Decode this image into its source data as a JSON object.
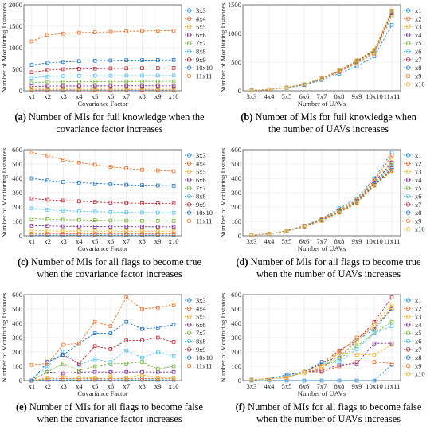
{
  "series_colors": [
    "#2a8fd6",
    "#ea6a2e",
    "#f2b32c",
    "#7a2e8c",
    "#74b33c",
    "#55c4ee",
    "#b32c3a",
    "#2272b8",
    "#e0742d",
    "#e8b43c"
  ],
  "panels": [
    {
      "tag": "(a)",
      "caption_line1": "Number of MIs for full knowledge when the",
      "caption_line2": "covariance factor increases"
    },
    {
      "tag": "(b)",
      "caption_line1": "Number of MIs for full knowledge when",
      "caption_line2": "the number of UAVs increases"
    },
    {
      "tag": "(c)",
      "caption_line1": "Number of MIs for all flags to become true",
      "caption_line2": "when the covariance factor increases"
    },
    {
      "tag": "(d)",
      "caption_line1": "Number of MIs for all flags to become true",
      "caption_line2": "when the number of UAVs increases"
    },
    {
      "tag": "(e)",
      "caption_line1": "Number of MIs for all flags to become false",
      "caption_line2": "when the covariance factor increases"
    },
    {
      "tag": "(f)",
      "caption_line1": "Number of MIs for all flags to become false",
      "caption_line2": "when the number of UAVs increases"
    }
  ],
  "chart_data": [
    {
      "type": "line",
      "xlabel": "Covariance Factor",
      "ylabel": "Number of Monitoring Instances",
      "categories": [
        "x1",
        "x2",
        "x3",
        "x4",
        "x5",
        "x6",
        "x7",
        "x8",
        "x9",
        "x10"
      ],
      "yticks": [
        0,
        500,
        1000,
        1500,
        2000
      ],
      "ylim": [
        0,
        2000
      ],
      "grid": true,
      "legend": "right",
      "series": [
        {
          "name": "3x3",
          "values": [
            5,
            6,
            6,
            6,
            6,
            6,
            6,
            6,
            6,
            6
          ]
        },
        {
          "name": "4x4",
          "values": [
            20,
            22,
            22,
            22,
            22,
            22,
            22,
            22,
            22,
            22
          ]
        },
        {
          "name": "5x5",
          "values": [
            50,
            55,
            56,
            56,
            56,
            56,
            56,
            56,
            56,
            56
          ]
        },
        {
          "name": "6x6",
          "values": [
            100,
            110,
            112,
            113,
            113,
            114,
            114,
            114,
            114,
            114
          ]
        },
        {
          "name": "7x7",
          "values": [
            190,
            205,
            210,
            212,
            214,
            216,
            217,
            218,
            219,
            220
          ]
        },
        {
          "name": "8x8",
          "values": [
            300,
            330,
            340,
            345,
            348,
            350,
            352,
            353,
            354,
            355
          ]
        },
        {
          "name": "9x9",
          "values": [
            430,
            480,
            500,
            510,
            515,
            520,
            523,
            525,
            527,
            530
          ]
        },
        {
          "name": "10x10",
          "values": [
            600,
            650,
            670,
            690,
            700,
            705,
            710,
            712,
            715,
            718
          ]
        },
        {
          "name": "11x11",
          "values": [
            1150,
            1300,
            1330,
            1350,
            1360,
            1370,
            1380,
            1390,
            1395,
            1400
          ]
        }
      ]
    },
    {
      "type": "line",
      "xlabel": "Number of UAVs",
      "ylabel": "Number of Monitoring Instances",
      "categories": [
        "3x3",
        "4x4",
        "5x5",
        "6x6",
        "7x7",
        "8x8",
        "9x9",
        "10x10",
        "11x11"
      ],
      "yticks": [
        0,
        500,
        1000,
        1500
      ],
      "ylim": [
        0,
        1500
      ],
      "grid": true,
      "legend": "right",
      "series": [
        {
          "name": "x1",
          "values": [
            5,
            20,
            50,
            100,
            190,
            300,
            430,
            600,
            1150
          ]
        },
        {
          "name": "x2",
          "values": [
            6,
            22,
            55,
            110,
            205,
            330,
            480,
            650,
            1300
          ]
        },
        {
          "name": "x3",
          "values": [
            6,
            22,
            56,
            112,
            210,
            340,
            500,
            670,
            1330
          ]
        },
        {
          "name": "x4",
          "values": [
            6,
            22,
            56,
            113,
            212,
            345,
            510,
            690,
            1350
          ]
        },
        {
          "name": "x5",
          "values": [
            6,
            22,
            56,
            113,
            214,
            348,
            515,
            700,
            1360
          ]
        },
        {
          "name": "x6",
          "values": [
            6,
            22,
            56,
            114,
            216,
            350,
            520,
            705,
            1370
          ]
        },
        {
          "name": "x7",
          "values": [
            6,
            22,
            56,
            114,
            217,
            352,
            523,
            710,
            1380
          ]
        },
        {
          "name": "x8",
          "values": [
            6,
            22,
            56,
            114,
            218,
            353,
            525,
            712,
            1390
          ]
        },
        {
          "name": "x9",
          "values": [
            6,
            22,
            56,
            114,
            219,
            354,
            527,
            715,
            1395
          ]
        },
        {
          "name": "x10",
          "values": [
            6,
            22,
            56,
            114,
            220,
            355,
            530,
            718,
            1400
          ]
        }
      ]
    },
    {
      "type": "line",
      "xlabel": "Covariance Factor",
      "ylabel": "Number of Monitoring Instances",
      "categories": [
        "x1",
        "x2",
        "x3",
        "x4",
        "x5",
        "x6",
        "x7",
        "x8",
        "x9",
        "x10"
      ],
      "yticks": [
        0,
        100,
        200,
        300,
        400,
        500,
        600
      ],
      "ylim": [
        0,
        600
      ],
      "grid": true,
      "legend": "right",
      "series": [
        {
          "name": "3x3",
          "values": [
            5,
            5,
            5,
            5,
            5,
            5,
            5,
            5,
            5,
            5
          ]
        },
        {
          "name": "4x4",
          "values": [
            15,
            15,
            14,
            14,
            14,
            14,
            14,
            14,
            14,
            14
          ]
        },
        {
          "name": "5x5",
          "values": [
            35,
            34,
            33,
            33,
            33,
            32,
            32,
            32,
            32,
            32
          ]
        },
        {
          "name": "6x6",
          "values": [
            70,
            68,
            66,
            65,
            64,
            63,
            63,
            62,
            62,
            62
          ]
        },
        {
          "name": "7x7",
          "values": [
            120,
            115,
            112,
            110,
            108,
            106,
            105,
            104,
            104,
            103
          ]
        },
        {
          "name": "8x8",
          "values": [
            190,
            180,
            175,
            170,
            168,
            165,
            163,
            162,
            161,
            160
          ]
        },
        {
          "name": "9x9",
          "values": [
            260,
            250,
            245,
            240,
            235,
            230,
            228,
            226,
            225,
            224
          ]
        },
        {
          "name": "10x10",
          "values": [
            400,
            385,
            375,
            370,
            365,
            360,
            355,
            352,
            350,
            348
          ]
        },
        {
          "name": "11x11",
          "values": [
            580,
            560,
            530,
            510,
            495,
            480,
            470,
            460,
            455,
            450
          ]
        }
      ]
    },
    {
      "type": "line",
      "xlabel": "Number of UAVs",
      "ylabel": "Number of Monitoring Instances",
      "categories": [
        "3x3",
        "4x4",
        "5x5",
        "6x6",
        "7x7",
        "8x8",
        "9x9",
        "10x10",
        "11x11"
      ],
      "yticks": [
        0,
        100,
        200,
        300,
        400,
        500,
        600
      ],
      "ylim": [
        0,
        600
      ],
      "grid": true,
      "legend": "right",
      "series": [
        {
          "name": "x1",
          "values": [
            5,
            15,
            35,
            70,
            120,
            190,
            260,
            400,
            580
          ]
        },
        {
          "name": "x2",
          "values": [
            5,
            15,
            34,
            68,
            115,
            180,
            250,
            385,
            560
          ]
        },
        {
          "name": "x3",
          "values": [
            5,
            14,
            33,
            66,
            112,
            175,
            245,
            375,
            530
          ]
        },
        {
          "name": "x4",
          "values": [
            5,
            14,
            33,
            65,
            110,
            170,
            240,
            370,
            510
          ]
        },
        {
          "name": "x5",
          "values": [
            5,
            14,
            33,
            64,
            108,
            168,
            235,
            365,
            495
          ]
        },
        {
          "name": "x6",
          "values": [
            5,
            14,
            32,
            63,
            106,
            165,
            230,
            360,
            480
          ]
        },
        {
          "name": "x7",
          "values": [
            5,
            14,
            32,
            63,
            105,
            163,
            228,
            355,
            470
          ]
        },
        {
          "name": "x8",
          "values": [
            5,
            14,
            32,
            62,
            104,
            162,
            226,
            352,
            460
          ]
        },
        {
          "name": "x9",
          "values": [
            5,
            14,
            32,
            62,
            104,
            161,
            225,
            350,
            455
          ]
        },
        {
          "name": "x10",
          "values": [
            5,
            14,
            32,
            62,
            103,
            160,
            224,
            348,
            450
          ]
        }
      ]
    },
    {
      "type": "line",
      "xlabel": "Covariance Factor",
      "ylabel": "Number of Monitoring Instances",
      "categories": [
        "x1",
        "x2",
        "x3",
        "x4",
        "x5",
        "x6",
        "x7",
        "x8",
        "x9",
        "x10"
      ],
      "yticks": [
        0,
        100,
        200,
        300,
        400,
        500,
        600
      ],
      "ylim": [
        0,
        600
      ],
      "grid": true,
      "legend": "right",
      "series": [
        {
          "name": "3x3",
          "values": [
            0,
            5,
            5,
            5,
            5,
            5,
            5,
            5,
            5,
            5
          ]
        },
        {
          "name": "4x4",
          "values": [
            0,
            15,
            14,
            14,
            14,
            14,
            14,
            14,
            14,
            14
          ]
        },
        {
          "name": "5x5",
          "values": [
            0,
            20,
            30,
            20,
            20,
            30,
            20,
            40,
            20,
            20
          ]
        },
        {
          "name": "6x6",
          "values": [
            0,
            60,
            50,
            60,
            60,
            60,
            60,
            60,
            60,
            60
          ]
        },
        {
          "name": "7x7",
          "values": [
            0,
            60,
            120,
            70,
            100,
            120,
            120,
            130,
            80,
            100
          ]
        },
        {
          "name": "8x8",
          "values": [
            0,
            100,
            200,
            110,
            150,
            130,
            210,
            160,
            200,
            170
          ]
        },
        {
          "name": "9x9",
          "values": [
            0,
            130,
            180,
            120,
            240,
            220,
            280,
            280,
            300,
            270
          ]
        },
        {
          "name": "10x10",
          "values": [
            0,
            130,
            180,
            260,
            330,
            330,
            410,
            360,
            370,
            390
          ]
        },
        {
          "name": "11x11",
          "values": [
            110,
            120,
            250,
            260,
            410,
            380,
            580,
            500,
            510,
            530
          ]
        }
      ]
    },
    {
      "type": "line",
      "xlabel": "Number of UAVs",
      "ylabel": "Number of Monitoring Instances",
      "categories": [
        "3x3",
        "4x4",
        "5x5",
        "6x6",
        "7x7",
        "8x8",
        "9x9",
        "10x10",
        "11x11"
      ],
      "yticks": [
        0,
        100,
        200,
        300,
        400,
        500,
        600
      ],
      "ylim": [
        0,
        600
      ],
      "grid": true,
      "legend": "right",
      "series": [
        {
          "name": "x1",
          "values": [
            0,
            0,
            0,
            0,
            0,
            0,
            0,
            0,
            110
          ]
        },
        {
          "name": "x2",
          "values": [
            5,
            15,
            20,
            60,
            60,
            100,
            130,
            130,
            120
          ]
        },
        {
          "name": "x3",
          "values": [
            5,
            14,
            30,
            50,
            120,
            200,
            180,
            180,
            250
          ]
        },
        {
          "name": "x4",
          "values": [
            5,
            14,
            20,
            60,
            70,
            110,
            120,
            260,
            260
          ]
        },
        {
          "name": "x5",
          "values": [
            5,
            14,
            20,
            60,
            100,
            150,
            240,
            330,
            410
          ]
        },
        {
          "name": "x6",
          "values": [
            5,
            14,
            30,
            60,
            120,
            130,
            220,
            330,
            380
          ]
        },
        {
          "name": "x7",
          "values": [
            5,
            14,
            20,
            60,
            120,
            210,
            280,
            410,
            580
          ]
        },
        {
          "name": "x8",
          "values": [
            5,
            14,
            40,
            60,
            130,
            160,
            280,
            360,
            500
          ]
        },
        {
          "name": "x9",
          "values": [
            5,
            14,
            20,
            60,
            80,
            200,
            300,
            370,
            510
          ]
        },
        {
          "name": "x10",
          "values": [
            5,
            14,
            20,
            60,
            100,
            170,
            270,
            390,
            530
          ]
        }
      ]
    }
  ]
}
